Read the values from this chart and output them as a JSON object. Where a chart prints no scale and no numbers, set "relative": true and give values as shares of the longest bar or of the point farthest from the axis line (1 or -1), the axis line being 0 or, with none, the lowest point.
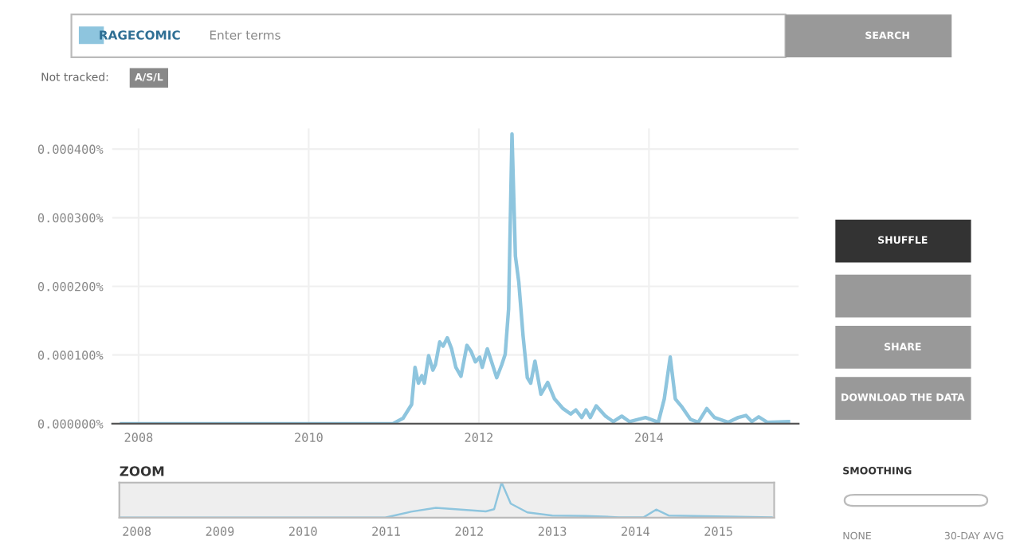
{
  "chart_data": [
    {
      "type": "line",
      "legend": "top left",
      "grid": true,
      "marker": "none",
      "line_style": "solid",
      "xlim": [
        2007.69,
        2015.76
      ],
      "xticks": [
        {
          "value": 2008,
          "label": "2008"
        },
        {
          "value": 2010,
          "label": "2010"
        },
        {
          "value": 2012,
          "label": "2012"
        },
        {
          "value": 2014,
          "label": "2014"
        }
      ],
      "ylim": [
        0,
        0.00043
      ],
      "yticks": [
        {
          "value": 0,
          "label": "0.000000%"
        },
        {
          "value": 0.0001,
          "label": "0.000100%"
        },
        {
          "value": 0.0002,
          "label": "0.000200%"
        },
        {
          "value": 0.0003,
          "label": "0.000300%"
        },
        {
          "value": 0.0004,
          "label": "0.000400%"
        }
      ],
      "annotations": [
        "Enter terms",
        "SEARCH",
        "Not tracked:",
        "A/S/L",
        "SHUFFLE",
        "SHARE",
        "DOWNLOAD THE DATA",
        "SMOOTHING",
        "NONE",
        "30-DAY AVG"
      ],
      "series": [
        {
          "name": "RAGECOMIC",
          "color": "#8ec5de",
          "x": [
            2007.8,
            2010.99,
            2011.11,
            2011.21,
            2011.25,
            2011.29,
            2011.33,
            2011.36,
            2011.41,
            2011.46,
            2011.49,
            2011.54,
            2011.58,
            2011.63,
            2011.68,
            2011.73,
            2011.79,
            2011.86,
            2011.91,
            2011.96,
            2012.01,
            2012.04,
            2012.1,
            2012.14,
            2012.21,
            2012.27,
            2012.31,
            2012.35,
            2012.39,
            2012.43,
            2012.47,
            2012.52,
            2012.57,
            2012.61,
            2012.66,
            2012.73,
            2012.81,
            2012.89,
            2012.99,
            2013.08,
            2013.14,
            2013.21,
            2013.26,
            2013.31,
            2013.38,
            2013.49,
            2013.58,
            2013.68,
            2013.77,
            2013.96,
            2014.11,
            2014.18,
            2014.25,
            2014.31,
            2014.39,
            2014.49,
            2014.58,
            2014.68,
            2014.77,
            2014.93,
            2015.05,
            2015.14,
            2015.21,
            2015.29,
            2015.39,
            2015.64
          ],
          "values": [
            0,
            0,
            8e-06,
            2.8e-05,
            8.2e-05,
            5.9e-05,
            7e-05,
            5.9e-05,
            9.9e-05,
            7.8e-05,
            8.6e-05,
            0.000119,
            0.000113,
            0.000125,
            0.000109,
            8.2e-05,
            6.9e-05,
            0.000114,
            0.000105,
            9e-05,
            9.7e-05,
            8.2e-05,
            0.000109,
            9.4e-05,
            6.7e-05,
            8.6e-05,
            0.000101,
            0.000167,
            0.000422,
            0.000244,
            0.000206,
            0.000128,
            6.7e-05,
            5.9e-05,
            9.1e-05,
            4.3e-05,
            6e-05,
            3.6e-05,
            2.2e-05,
            1.4e-05,
            2e-05,
            9e-06,
            2e-05,
            9e-06,
            2.6e-05,
            1.1e-05,
            3e-06,
            1.1e-05,
            3e-06,
            9e-06,
            2e-06,
            3.6e-05,
            9.7e-05,
            3.6e-05,
            2.4e-05,
            6e-06,
            2e-06,
            2.2e-05,
            9e-06,
            2e-06,
            9e-06,
            1.2e-05,
            3e-06,
            1e-05,
            2e-06,
            3e-06
          ]
        }
      ]
    },
    {
      "type": "line",
      "relative": true,
      "title": "ZOOM",
      "grid": false,
      "marker": "none",
      "xlim": [
        2007.79,
        2015.67
      ],
      "xticks": [
        {
          "value": 2008,
          "label": "2008"
        },
        {
          "value": 2009,
          "label": "2009"
        },
        {
          "value": 2010,
          "label": "2010"
        },
        {
          "value": 2011,
          "label": "2011"
        },
        {
          "value": 2012,
          "label": "2012"
        },
        {
          "value": 2013,
          "label": "2013"
        },
        {
          "value": 2014,
          "label": "2014"
        },
        {
          "value": 2015,
          "label": "2015"
        }
      ],
      "series": [
        {
          "color": "#8ec5de",
          "x": [
            2007.8,
            2010.99,
            2011.3,
            2011.6,
            2011.9,
            2012.2,
            2012.3,
            2012.39,
            2012.5,
            2012.7,
            2013.0,
            2013.4,
            2013.8,
            2014.1,
            2014.25,
            2014.4,
            2014.7,
            2015.1,
            2015.64
          ],
          "values": [
            0,
            0,
            0.17,
            0.28,
            0.23,
            0.18,
            0.24,
            1,
            0.4,
            0.15,
            0.06,
            0.05,
            0.01,
            0.01,
            0.23,
            0.06,
            0.05,
            0.03,
            0.01
          ]
        }
      ]
    }
  ]
}
